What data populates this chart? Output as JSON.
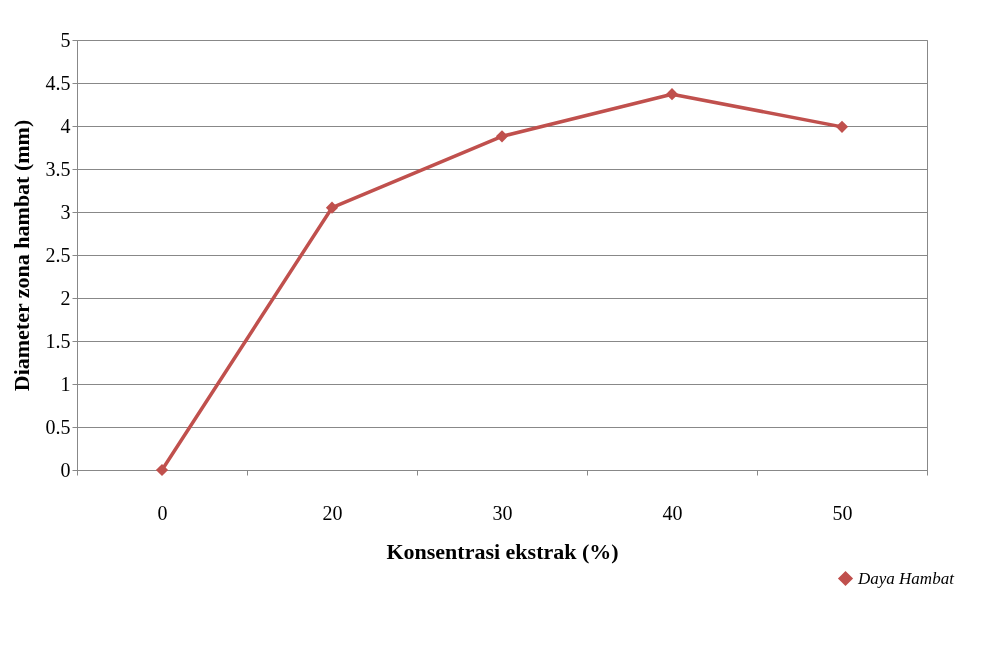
{
  "chart_data": {
    "type": "line",
    "xlabel": "Konsentrasi  ekstrak (%)",
    "ylabel": "Diameter zona hambat (mm)",
    "categories": [
      "0",
      "20",
      "30",
      "40",
      "50"
    ],
    "series": [
      {
        "name": "Daya Hambat",
        "color": "#c0504d",
        "values": [
          0,
          3.05,
          3.88,
          4.37,
          3.99
        ]
      }
    ],
    "ylim": [
      0,
      5
    ],
    "yticks": [
      0,
      0.5,
      1,
      1.5,
      2,
      2.5,
      3,
      3.5,
      4,
      4.5,
      5
    ],
    "grid": "y",
    "legend": "bottom right",
    "marker": "diamond",
    "line_style": "solid"
  }
}
